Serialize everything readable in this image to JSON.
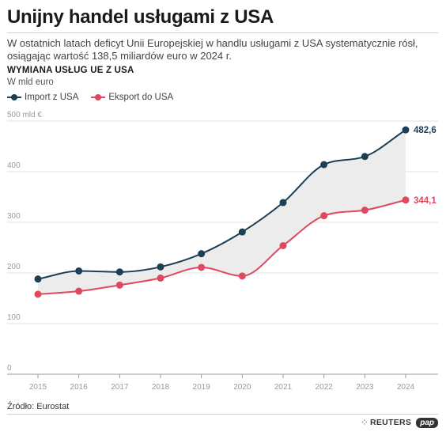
{
  "header": {
    "title": "Unijny handel usługami z USA",
    "subtitle": "W ostatnich latach deficyt Unii Europejskiej w handlu usługami z USA systematycznie rósł, osiągając wartość 138,5 miliardów euro w 2024 r."
  },
  "footer": {
    "source": "Źródło: Eurostat",
    "logo_reuters": "REUTERS",
    "logo_pap": "pap"
  },
  "chart_data": {
    "type": "line",
    "title": "WYMIANA USŁUG UE Z USA",
    "subtitle": "W mld euro",
    "x": [
      "2015",
      "2016",
      "2017",
      "2018",
      "2019",
      "2020",
      "2021",
      "2022",
      "2023",
      "2024"
    ],
    "ylim": [
      0,
      500
    ],
    "yticks": [
      0,
      100,
      200,
      300,
      400,
      500
    ],
    "ytick_labels": [
      "0",
      "100",
      "200",
      "300",
      "400",
      "500 mld €"
    ],
    "grid": true,
    "legend_position": "top-left",
    "gap_fill": true,
    "series": [
      {
        "name": "Import z USA",
        "color": "#1c3f55",
        "values": [
          188,
          204,
          202,
          212,
          238,
          281,
          339,
          414,
          430,
          482.6
        ],
        "end_label": "482,6"
      },
      {
        "name": "Eksport do USA",
        "color": "#e0485f",
        "values": [
          158,
          164,
          176,
          190,
          211,
          194,
          254,
          313,
          324,
          344.1
        ],
        "end_label": "344,1"
      }
    ],
    "gap_color": "#ececec"
  }
}
